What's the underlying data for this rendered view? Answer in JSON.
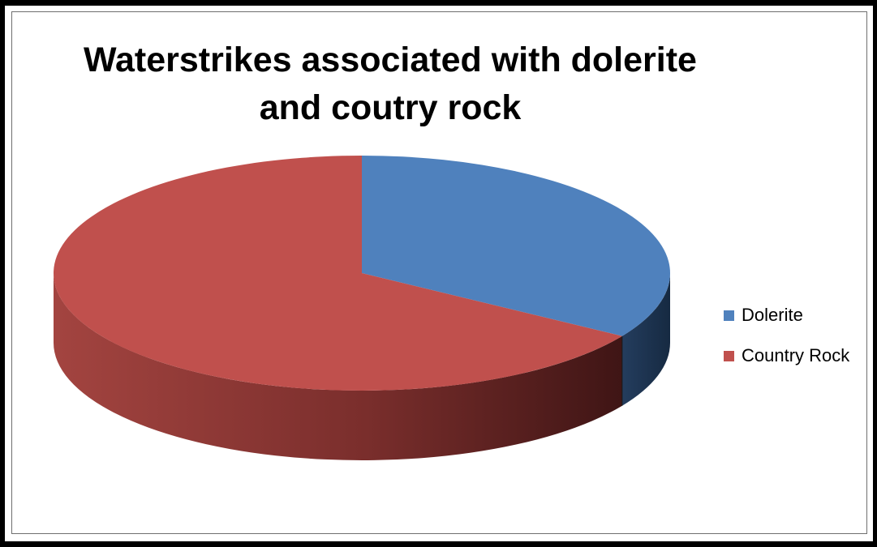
{
  "chart_data": {
    "type": "pie",
    "title": "Waterstrikes associated with dolerite and coutry rock",
    "categories": [
      "Dolerite",
      "Country Rock"
    ],
    "values": [
      34,
      66
    ],
    "colors": {
      "Dolerite": "#4f81bd",
      "Country Rock": "#c0504d"
    },
    "legend": {
      "position": "right",
      "items": [
        "Dolerite",
        "Country Rock"
      ]
    },
    "style": "3d"
  }
}
